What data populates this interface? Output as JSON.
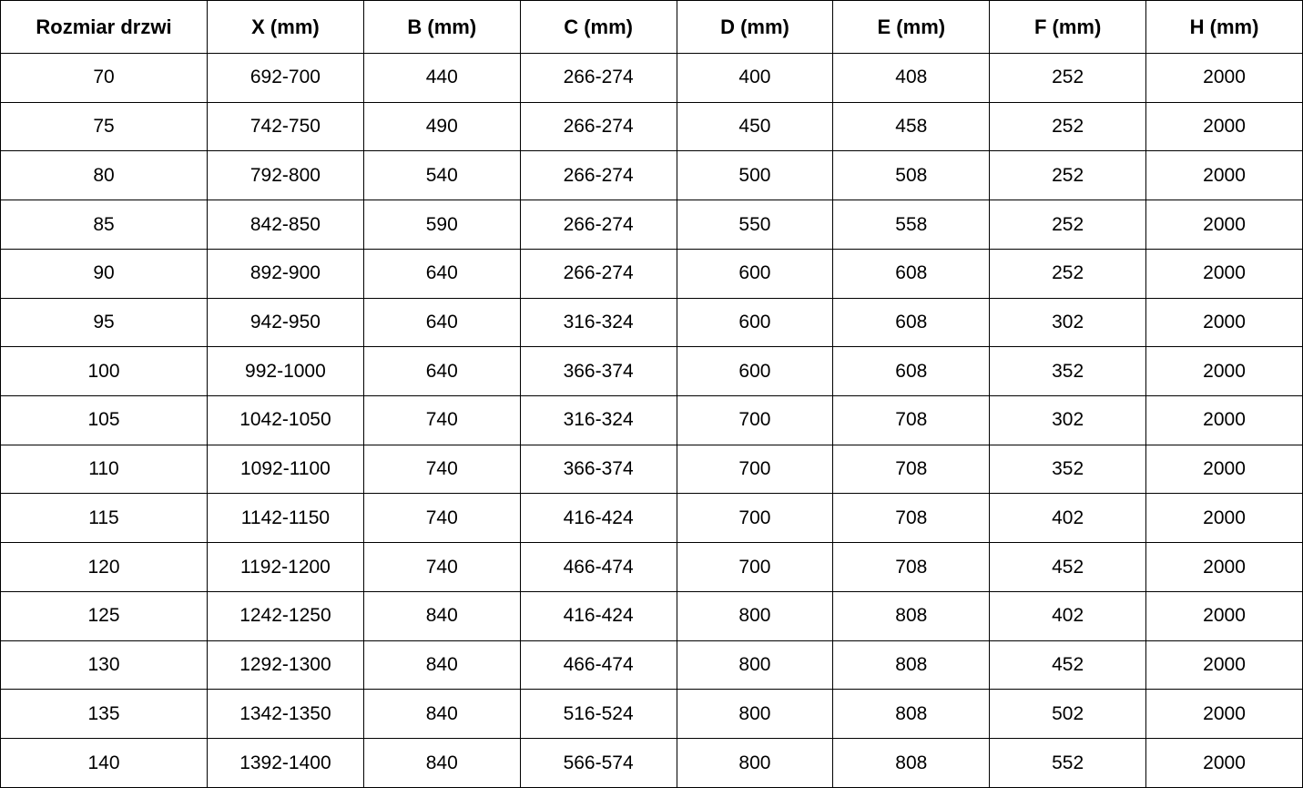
{
  "table": {
    "headers": [
      "Rozmiar drzwi",
      "X (mm)",
      "B (mm)",
      "C (mm)",
      "D (mm)",
      "E (mm)",
      "F (mm)",
      "H (mm)"
    ],
    "rows": [
      [
        "70",
        "692-700",
        "440",
        "266-274",
        "400",
        "408",
        "252",
        "2000"
      ],
      [
        "75",
        "742-750",
        "490",
        "266-274",
        "450",
        "458",
        "252",
        "2000"
      ],
      [
        "80",
        "792-800",
        "540",
        "266-274",
        "500",
        "508",
        "252",
        "2000"
      ],
      [
        "85",
        "842-850",
        "590",
        "266-274",
        "550",
        "558",
        "252",
        "2000"
      ],
      [
        "90",
        "892-900",
        "640",
        "266-274",
        "600",
        "608",
        "252",
        "2000"
      ],
      [
        "95",
        "942-950",
        "640",
        "316-324",
        "600",
        "608",
        "302",
        "2000"
      ],
      [
        "100",
        "992-1000",
        "640",
        "366-374",
        "600",
        "608",
        "352",
        "2000"
      ],
      [
        "105",
        "1042-1050",
        "740",
        "316-324",
        "700",
        "708",
        "302",
        "2000"
      ],
      [
        "110",
        "1092-1100",
        "740",
        "366-374",
        "700",
        "708",
        "352",
        "2000"
      ],
      [
        "115",
        "1142-1150",
        "740",
        "416-424",
        "700",
        "708",
        "402",
        "2000"
      ],
      [
        "120",
        "1192-1200",
        "740",
        "466-474",
        "700",
        "708",
        "452",
        "2000"
      ],
      [
        "125",
        "1242-1250",
        "840",
        "416-424",
        "800",
        "808",
        "402",
        "2000"
      ],
      [
        "130",
        "1292-1300",
        "840",
        "466-474",
        "800",
        "808",
        "452",
        "2000"
      ],
      [
        "135",
        "1342-1350",
        "840",
        "516-524",
        "800",
        "808",
        "502",
        "2000"
      ],
      [
        "140",
        "1392-1400",
        "840",
        "566-574",
        "800",
        "808",
        "552",
        "2000"
      ]
    ],
    "colors": {
      "border": "#000000",
      "text": "#000000",
      "background": "#ffffff"
    }
  }
}
